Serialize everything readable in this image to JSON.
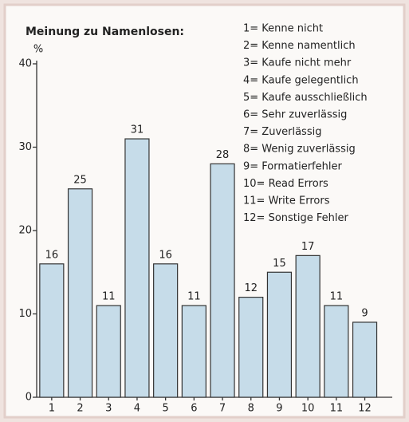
{
  "chart_data": {
    "type": "bar",
    "title": "Meinung zu Namenlosen:",
    "y_axis_label": "%",
    "categories": [
      "1",
      "2",
      "3",
      "4",
      "5",
      "6",
      "7",
      "8",
      "9",
      "10",
      "11",
      "12"
    ],
    "values": [
      16,
      25,
      11,
      31,
      16,
      11,
      28,
      12,
      15,
      17,
      11,
      9
    ],
    "color": "#c6dce9",
    "ylim": [
      0,
      40
    ],
    "yticks": [
      0,
      10,
      20,
      30,
      40
    ],
    "grid": false,
    "legend_items": [
      "1= Kenne nicht",
      "2= Kenne namentlich",
      "3= Kaufe nicht mehr",
      "4= Kaufe gelegentlich",
      "5= Kaufe ausschließlich",
      "6= Sehr zuverlässig",
      "7= Zuverlässig",
      "8= Wenig zuverlässig",
      "9= Formatierfehler",
      "10= Read Errors",
      "11= Write Errors",
      "12= Sonstige Fehler"
    ]
  }
}
